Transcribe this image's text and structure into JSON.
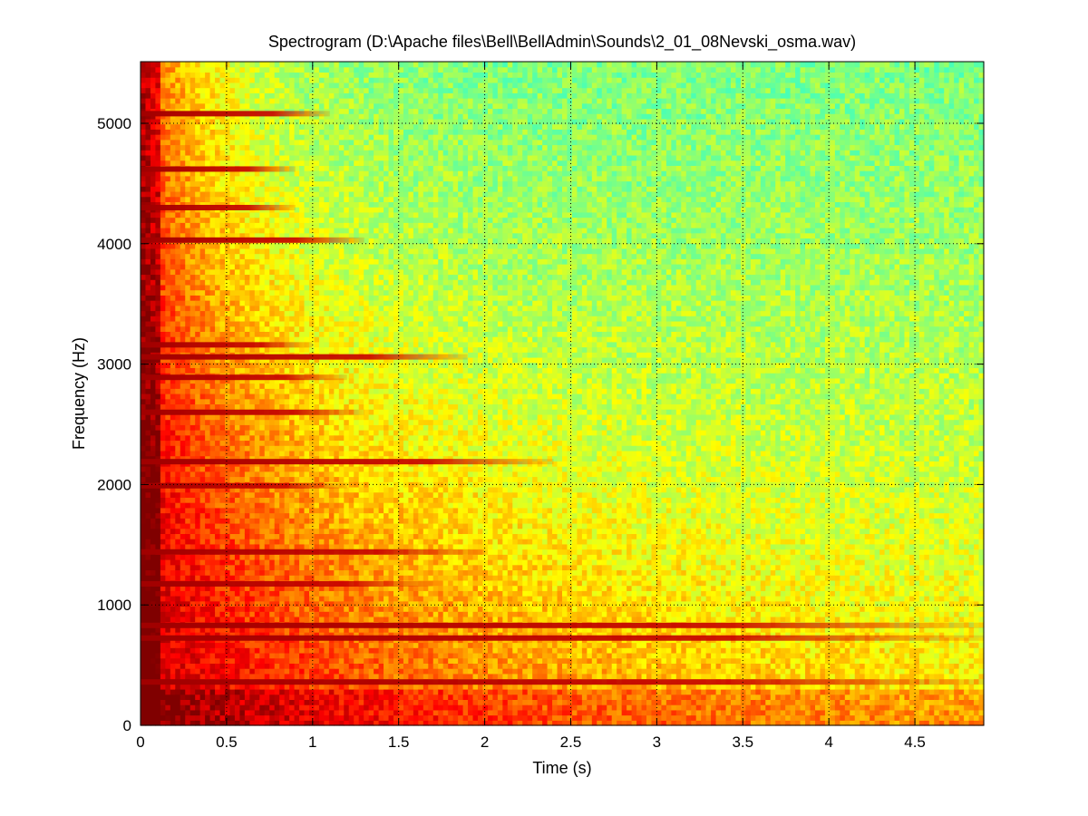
{
  "chart_data": {
    "type": "heatmap",
    "title": "Spectrogram (D:\\Apache files\\Bell\\BellAdmin\\Sounds\\2_01_08Nevski_osma.wav)",
    "xlabel": "Time (s)",
    "ylabel": "Frequency (Hz)",
    "xlim": [
      0,
      4.9
    ],
    "ylim": [
      0,
      5512
    ],
    "x_ticks": [
      0,
      0.5,
      1,
      1.5,
      2,
      2.5,
      3,
      3.5,
      4,
      4.5
    ],
    "x_tick_labels": [
      "0",
      "0.5",
      "1",
      "1.5",
      "2",
      "2.5",
      "3",
      "3.5",
      "4",
      "4.5"
    ],
    "y_ticks": [
      0,
      1000,
      2000,
      3000,
      4000,
      5000
    ],
    "y_tick_labels": [
      "0",
      "1000",
      "2000",
      "3000",
      "4000",
      "5000"
    ],
    "grid": true,
    "colormap": "jet",
    "harmonics": [
      {
        "freq": 360,
        "decay_end_time": 4.9
      },
      {
        "freq": 725,
        "decay_end_time": 4.9
      },
      {
        "freq": 830,
        "decay_end_time": 4.9
      },
      {
        "freq": 1175,
        "decay_end_time": 1.7
      },
      {
        "freq": 1440,
        "decay_end_time": 2.0
      },
      {
        "freq": 1990,
        "decay_end_time": 1.2
      },
      {
        "freq": 2190,
        "decay_end_time": 2.4
      },
      {
        "freq": 2600,
        "decay_end_time": 1.3
      },
      {
        "freq": 2890,
        "decay_end_time": 1.2
      },
      {
        "freq": 3060,
        "decay_end_time": 1.9
      },
      {
        "freq": 3160,
        "decay_end_time": 1.0
      },
      {
        "freq": 4030,
        "decay_end_time": 1.3
      },
      {
        "freq": 4300,
        "decay_end_time": 0.9
      },
      {
        "freq": 4620,
        "decay_end_time": 0.9
      },
      {
        "freq": 5080,
        "decay_end_time": 1.1
      }
    ]
  }
}
